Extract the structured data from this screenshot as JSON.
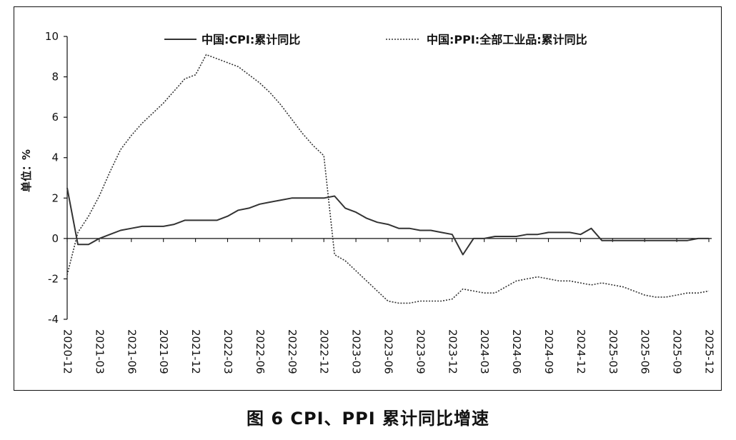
{
  "caption": "图 6  CPI、PPI 累计同比增速",
  "chart_data": {
    "type": "line",
    "ylabel": "单位：%",
    "ylim": [
      -4,
      10
    ],
    "yticks": [
      -4,
      -2,
      0,
      2,
      4,
      6,
      8,
      10
    ],
    "grid": false,
    "legend": "top",
    "x_tick_labels": [
      "2020-12",
      "2021-03",
      "2021-06",
      "2021-09",
      "2021-12",
      "2022-03",
      "2022-06",
      "2022-09",
      "2022-12",
      "2023-03",
      "2023-06",
      "2023-09",
      "2023-12",
      "2024-03",
      "2024-06",
      "2024-09",
      "2024-12",
      "2025-03",
      "2025-06",
      "2025-09",
      "2025-12"
    ],
    "x": [
      "2020-12",
      "2021-01",
      "2021-02",
      "2021-03",
      "2021-04",
      "2021-05",
      "2021-06",
      "2021-07",
      "2021-08",
      "2021-09",
      "2021-10",
      "2021-11",
      "2021-12",
      "2022-01",
      "2022-02",
      "2022-03",
      "2022-04",
      "2022-05",
      "2022-06",
      "2022-07",
      "2022-08",
      "2022-09",
      "2022-10",
      "2022-11",
      "2022-12",
      "2023-01",
      "2023-02",
      "2023-03",
      "2023-04",
      "2023-05",
      "2023-06",
      "2023-07",
      "2023-08",
      "2023-09",
      "2023-10",
      "2023-11",
      "2023-12",
      "2024-01",
      "2024-02",
      "2024-03",
      "2024-04",
      "2024-05",
      "2024-06",
      "2024-07",
      "2024-08",
      "2024-09",
      "2024-10",
      "2024-11",
      "2024-12",
      "2025-01",
      "2025-02",
      "2025-03",
      "2025-04",
      "2025-05",
      "2025-06",
      "2025-07",
      "2025-08",
      "2025-09",
      "2025-10",
      "2025-11",
      "2025-12"
    ],
    "series": [
      {
        "name": "中国:CPI:累计同比",
        "style": "solid",
        "color": "#333333",
        "values": [
          2.5,
          -0.3,
          -0.3,
          0.0,
          0.2,
          0.4,
          0.5,
          0.6,
          0.6,
          0.6,
          0.7,
          0.9,
          0.9,
          0.9,
          0.9,
          1.1,
          1.4,
          1.5,
          1.7,
          1.8,
          1.9,
          2.0,
          2.0,
          2.0,
          2.0,
          2.1,
          1.5,
          1.3,
          1.0,
          0.8,
          0.7,
          0.5,
          0.5,
          0.4,
          0.4,
          0.3,
          0.2,
          -0.8,
          0.0,
          0.0,
          0.1,
          0.1,
          0.1,
          0.2,
          0.2,
          0.3,
          0.3,
          0.3,
          0.2,
          0.5,
          -0.1,
          -0.1,
          -0.1,
          -0.1,
          -0.1,
          -0.1,
          -0.1,
          -0.1,
          -0.1,
          0.0,
          0.0
        ]
      },
      {
        "name": "中国:PPI:全部工业品:累计同比",
        "style": "dotted",
        "color": "#333333",
        "values": [
          -1.8,
          0.3,
          1.1,
          2.1,
          3.3,
          4.4,
          5.1,
          5.7,
          6.2,
          6.7,
          7.3,
          7.9,
          8.1,
          9.1,
          8.9,
          8.7,
          8.5,
          8.1,
          7.7,
          7.2,
          6.6,
          5.9,
          5.2,
          4.6,
          4.1,
          -0.8,
          -1.1,
          -1.6,
          -2.1,
          -2.6,
          -3.1,
          -3.2,
          -3.2,
          -3.1,
          -3.1,
          -3.1,
          -3.0,
          -2.5,
          -2.6,
          -2.7,
          -2.7,
          -2.4,
          -2.1,
          -2.0,
          -1.9,
          -2.0,
          -2.1,
          -2.1,
          -2.2,
          -2.3,
          -2.2,
          -2.3,
          -2.4,
          -2.6,
          -2.8,
          -2.9,
          -2.9,
          -2.8,
          -2.7,
          -2.7,
          -2.6
        ]
      }
    ]
  }
}
